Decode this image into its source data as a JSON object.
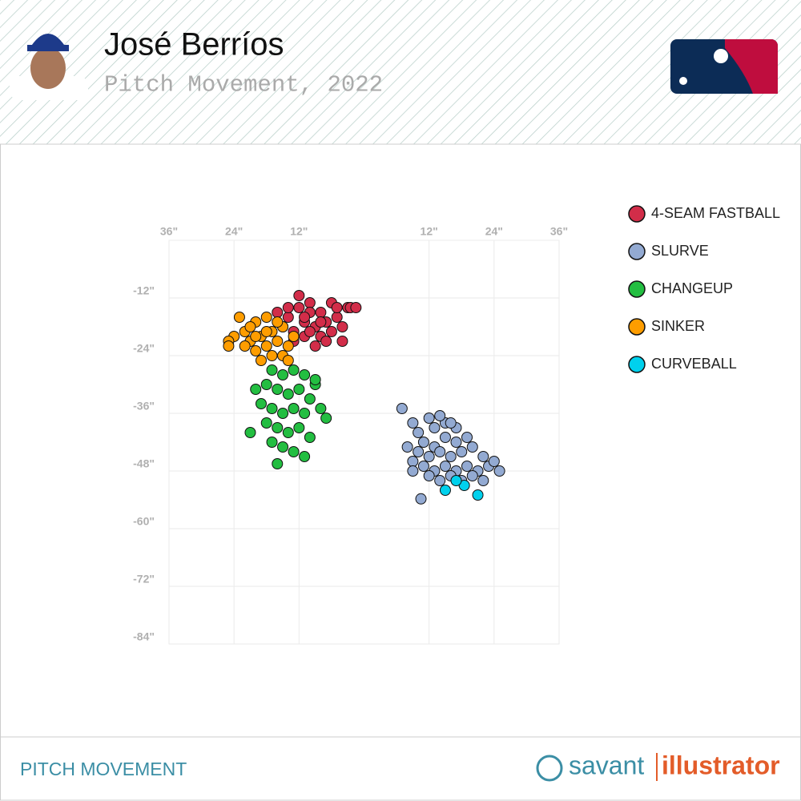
{
  "header": {
    "title": "José Berríos",
    "subtitle": "Pitch Movement, 2022"
  },
  "footer": {
    "label": "PITCH MOVEMENT",
    "brand_left": "savant",
    "brand_right": "illustrator"
  },
  "chart_data": {
    "type": "scatter",
    "xlim": [
      -36,
      36
    ],
    "ylim": [
      -84,
      0
    ],
    "xticks": [
      {
        "value": -36,
        "label": "36\""
      },
      {
        "value": -24,
        "label": "24\""
      },
      {
        "value": -12,
        "label": "12\""
      },
      {
        "value": 12,
        "label": "12\""
      },
      {
        "value": 24,
        "label": "24\""
      },
      {
        "value": 36,
        "label": "36\""
      }
    ],
    "yticks": [
      {
        "value": -12,
        "label": "-12\""
      },
      {
        "value": -24,
        "label": "-24\""
      },
      {
        "value": -36,
        "label": "-36\""
      },
      {
        "value": -48,
        "label": "-48\""
      },
      {
        "value": -60,
        "label": "-60\""
      },
      {
        "value": -72,
        "label": "-72\""
      },
      {
        "value": -84,
        "label": "-84\""
      }
    ],
    "grid": true,
    "series": [
      {
        "name": "4-SEAM FASTBALL",
        "color": "#d22d49",
        "x": [
          -12,
          -10,
          -8,
          -14,
          -11,
          -9,
          -7,
          -5,
          -4,
          -13,
          -15,
          -11,
          -8,
          -6,
          -3,
          -10,
          -12,
          -16,
          -7,
          -4,
          -9,
          -13,
          -2.5,
          -1.5,
          -6,
          -11,
          -8,
          -5,
          -10,
          -14
        ],
        "values": [
          -14,
          -13,
          -15,
          -16,
          -17,
          -18,
          -17,
          -16,
          -18,
          -19,
          -18,
          -20,
          -20,
          -19,
          -14,
          -15,
          -11.5,
          -15,
          -21,
          -21,
          -22,
          -21,
          -14,
          -14,
          -13,
          -16,
          -17,
          -14,
          -19,
          -14
        ]
      },
      {
        "name": "SLURVE",
        "color": "#93aad2",
        "x": [
          7,
          9,
          10,
          12,
          13,
          15,
          17,
          11,
          13,
          15,
          17,
          19,
          8,
          10,
          12,
          14,
          16,
          18,
          20,
          22,
          9,
          11,
          13,
          15,
          17,
          19,
          21,
          23,
          25,
          12,
          14,
          16,
          18,
          20,
          22,
          9,
          10.5,
          16,
          14,
          24
        ],
        "values": [
          -35,
          -38,
          -40,
          -37,
          -39,
          -38,
          -39,
          -42,
          -43,
          -41,
          -42,
          -41,
          -43,
          -44,
          -45,
          -44,
          -45,
          -44,
          -43,
          -45,
          -46,
          -47,
          -48,
          -47,
          -48,
          -47,
          -48,
          -47,
          -48,
          -49,
          -50,
          -49,
          -50,
          -49,
          -50,
          -48,
          -53.8,
          -38,
          -36.5,
          -46
        ]
      },
      {
        "name": "CHANGEUP",
        "color": "#23be41",
        "x": [
          -17,
          -15,
          -13,
          -11,
          -9,
          -18,
          -16,
          -14,
          -12,
          -10,
          -20,
          -19,
          -17,
          -15,
          -13,
          -11,
          -8,
          -7,
          -18,
          -16,
          -14,
          -12,
          -10,
          -17,
          -15,
          -13,
          -11,
          -16,
          -21,
          -9
        ],
        "values": [
          -27,
          -28,
          -27,
          -28,
          -30,
          -30,
          -31,
          -32,
          -31,
          -33,
          -31,
          -34,
          -35,
          -36,
          -35,
          -36,
          -35,
          -37,
          -38,
          -39,
          -40,
          -39,
          -41,
          -42,
          -43,
          -44,
          -45,
          -46.5,
          -40,
          -29
        ]
      },
      {
        "name": "SINKER",
        "color": "#fe9d00",
        "x": [
          -22,
          -20,
          -18,
          -21,
          -19,
          -17,
          -15,
          -16,
          -18,
          -20,
          -22,
          -24,
          -14,
          -17,
          -19,
          -15,
          -21,
          -23,
          -25,
          -25,
          -16,
          -13,
          -18,
          -20,
          -14
        ],
        "values": [
          -19,
          -17,
          -16,
          -21,
          -20,
          -19,
          -18,
          -21,
          -22,
          -23,
          -22,
          -20,
          -22,
          -24,
          -25,
          -24,
          -18,
          -16,
          -21,
          -22,
          -17,
          -20,
          -19,
          -20,
          -25
        ]
      },
      {
        "name": "CURVEBALL",
        "color": "#00d1ed",
        "x": [
          15,
          18.5,
          21,
          17
        ],
        "values": [
          -52,
          -51,
          -53,
          -50
        ]
      }
    ]
  }
}
